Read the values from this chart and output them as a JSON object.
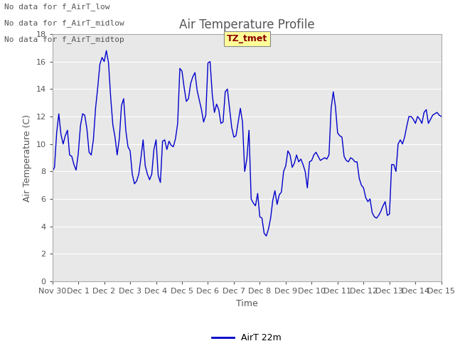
{
  "title": "Air Temperature Profile",
  "xlabel": "Time",
  "ylabel": "Air Temperature (C)",
  "ylim": [
    0,
    18
  ],
  "yticks": [
    0,
    2,
    4,
    6,
    8,
    10,
    12,
    14,
    16,
    18
  ],
  "line_color": "#0000cc",
  "line_label": "AirT 22m",
  "bg_color": "#e8e8e8",
  "fig_bg_color": "#ffffff",
  "annotations": [
    "No data for f_AirT_low",
    "No data for f_AirT_midlow",
    "No data for f_AirT_midtop"
  ],
  "legend_box_color": "#ffff99",
  "legend_box_text": "TZ_tmet",
  "xtick_labels": [
    "Nov 30",
    "Dec 1",
    "Dec 2",
    "Dec 3",
    "Dec 4",
    "Dec 5",
    "Dec 6",
    "Dec 7",
    "Dec 8",
    "Dec 9",
    "Dec 10",
    "Dec 11",
    "Dec 12",
    "Dec 13",
    "Dec 14",
    "Dec 15"
  ],
  "title_fontsize": 12,
  "axis_label_fontsize": 9,
  "tick_fontsize": 8,
  "annotation_fontsize": 8,
  "x_values": [
    0.0,
    0.083,
    0.167,
    0.25,
    0.333,
    0.417,
    0.5,
    0.583,
    0.667,
    0.75,
    0.833,
    0.917,
    1.0,
    1.083,
    1.167,
    1.25,
    1.333,
    1.417,
    1.5,
    1.583,
    1.667,
    1.75,
    1.833,
    1.917,
    2.0,
    2.083,
    2.167,
    2.25,
    2.333,
    2.417,
    2.5,
    2.583,
    2.667,
    2.75,
    2.833,
    2.917,
    3.0,
    3.083,
    3.167,
    3.25,
    3.333,
    3.417,
    3.5,
    3.583,
    3.667,
    3.75,
    3.833,
    3.917,
    4.0,
    4.083,
    4.167,
    4.25,
    4.333,
    4.417,
    4.5,
    4.583,
    4.667,
    4.75,
    4.833,
    4.917,
    5.0,
    5.083,
    5.167,
    5.25,
    5.333,
    5.417,
    5.5,
    5.583,
    5.667,
    5.75,
    5.833,
    5.917,
    6.0,
    6.083,
    6.167,
    6.25,
    6.333,
    6.417,
    6.5,
    6.583,
    6.667,
    6.75,
    6.833,
    6.917,
    7.0,
    7.083,
    7.167,
    7.25,
    7.333,
    7.417,
    7.5,
    7.583,
    7.667,
    7.75,
    7.833,
    7.917,
    8.0,
    8.083,
    8.167,
    8.25,
    8.333,
    8.417,
    8.5,
    8.583,
    8.667,
    8.75,
    8.833,
    8.917,
    9.0,
    9.083,
    9.167,
    9.25,
    9.333,
    9.417,
    9.5,
    9.583,
    9.667,
    9.75,
    9.833,
    9.917,
    10.0,
    10.083,
    10.167,
    10.25,
    10.333,
    10.417,
    10.5,
    10.583,
    10.667,
    10.75,
    10.833,
    10.917,
    11.0,
    11.083,
    11.167,
    11.25,
    11.333,
    11.417,
    11.5,
    11.583,
    11.667,
    11.75,
    11.833,
    11.917,
    12.0,
    12.083,
    12.167,
    12.25,
    12.333,
    12.417,
    12.5,
    12.583,
    12.667,
    12.75,
    12.833,
    12.917,
    13.0,
    13.083,
    13.167,
    13.25,
    13.333,
    13.417,
    13.5,
    13.583,
    13.667,
    13.75,
    13.833,
    13.917,
    14.0,
    14.083,
    14.167,
    14.25,
    14.333,
    14.417,
    14.5,
    14.583,
    14.667,
    14.75,
    14.833,
    14.917,
    15.0
  ],
  "y_values": [
    8.0,
    8.3,
    10.8,
    12.2,
    10.7,
    10.0,
    10.6,
    11.0,
    9.2,
    9.1,
    8.5,
    8.1,
    9.3,
    11.3,
    12.2,
    12.1,
    11.1,
    9.4,
    9.2,
    10.3,
    12.6,
    14.1,
    15.8,
    16.3,
    16.0,
    16.8,
    15.9,
    13.4,
    11.4,
    10.5,
    9.2,
    10.4,
    12.8,
    13.3,
    11.0,
    9.8,
    9.5,
    7.8,
    7.1,
    7.3,
    7.8,
    9.0,
    10.3,
    8.4,
    7.8,
    7.4,
    7.8,
    9.6,
    10.3,
    7.7,
    7.2,
    10.2,
    10.3,
    9.6,
    10.2,
    9.9,
    9.8,
    10.4,
    11.5,
    15.5,
    15.3,
    14.1,
    13.1,
    13.3,
    14.4,
    14.9,
    15.2,
    13.9,
    13.2,
    12.5,
    11.6,
    12.1,
    15.9,
    16.0,
    13.6,
    12.3,
    12.9,
    12.5,
    11.5,
    11.6,
    13.8,
    14.0,
    12.6,
    11.2,
    10.5,
    10.6,
    11.6,
    12.6,
    11.6,
    8.0,
    8.9,
    11.0,
    6.0,
    5.7,
    5.5,
    6.4,
    4.7,
    4.6,
    3.5,
    3.3,
    3.8,
    4.6,
    5.9,
    6.6,
    5.6,
    6.3,
    6.5,
    8.0,
    8.4,
    9.5,
    9.2,
    8.3,
    8.6,
    9.2,
    8.7,
    8.9,
    8.5,
    8.0,
    6.8,
    8.7,
    8.8,
    9.2,
    9.4,
    9.1,
    8.8,
    8.9,
    9.0,
    8.9,
    9.2,
    12.6,
    13.8,
    12.7,
    10.8,
    10.6,
    10.5,
    9.1,
    8.8,
    8.7,
    9.0,
    8.9,
    8.7,
    8.7,
    7.5,
    7.0,
    6.8,
    6.1,
    5.8,
    6.0,
    5.0,
    4.7,
    4.6,
    4.8,
    5.1,
    5.5,
    5.8,
    4.8,
    4.9,
    8.5,
    8.5,
    8.0,
    10.0,
    10.3,
    10.0,
    10.5,
    11.3,
    12.0,
    12.0,
    11.8,
    11.5,
    12.0,
    11.8,
    11.5,
    12.3,
    12.5,
    11.5,
    11.8,
    12.1,
    12.2,
    12.3,
    12.1,
    12.0
  ]
}
